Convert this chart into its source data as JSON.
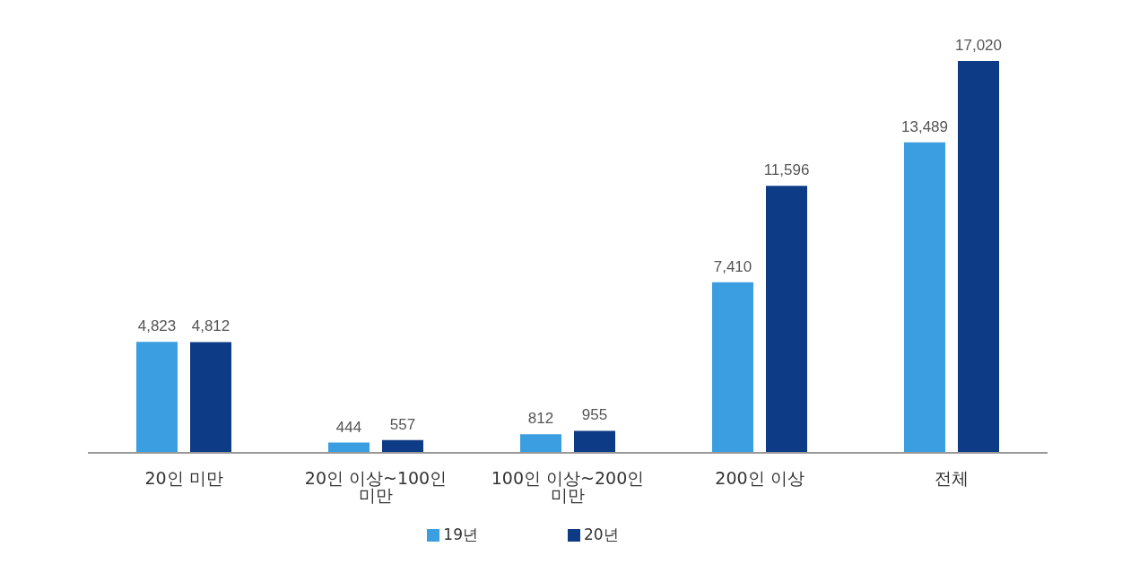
{
  "chart_data": {
    "type": "bar",
    "categories": [
      "20인 미만",
      "20인 이상~100인 미만",
      "100인 이상~200인 미만",
      "200인 이상",
      "전체"
    ],
    "series": [
      {
        "name": "19년",
        "color": "#3a9ee0",
        "values": [
          4823,
          444,
          812,
          7410,
          13489
        ],
        "value_labels": [
          "4,823",
          "444",
          "812",
          "7,410",
          "13,489"
        ]
      },
      {
        "name": "20년",
        "color": "#0d3b85",
        "values": [
          4812,
          557,
          955,
          11596,
          17020
        ],
        "value_labels": [
          "4,812",
          "557",
          "955",
          "11,596",
          "17,020"
        ]
      }
    ],
    "legend": "bottom",
    "grid": false
  }
}
